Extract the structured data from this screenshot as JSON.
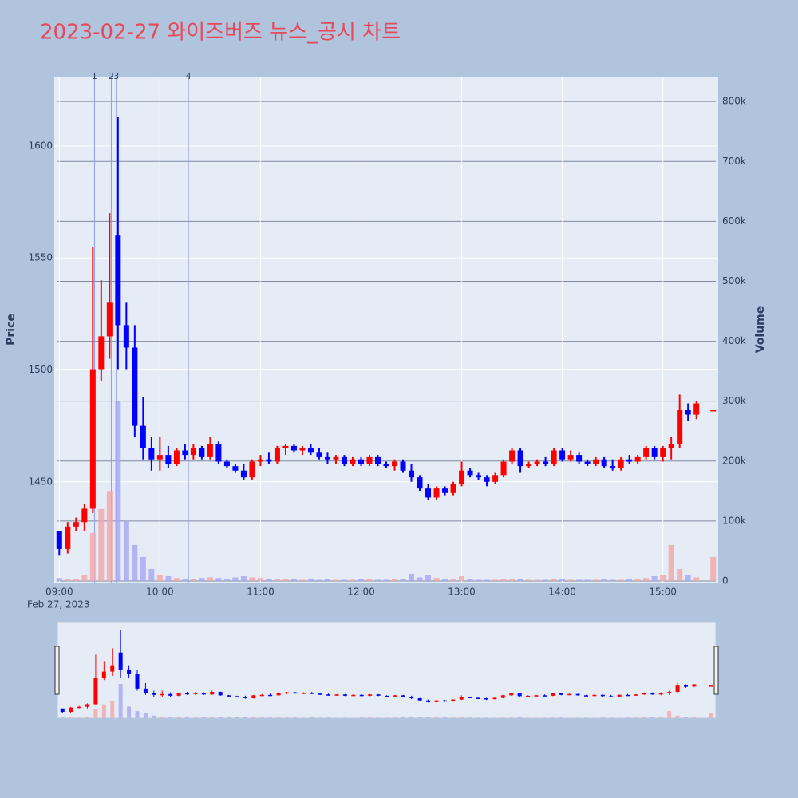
{
  "chart_data": {
    "type": "candlestick",
    "title": "2023-02-27 와이즈버즈 뉴스_공시 차트",
    "y_label": "Price",
    "y2_label": "Volume",
    "x_sublabel": "Feb 27, 2023",
    "increasing_color": "#ff0000",
    "decreasing_color": "#0000ff",
    "volume_increasing_color": "#f4a6a6",
    "volume_decreasing_color": "#a6a6f4",
    "x": [
      "09:00",
      "09:05",
      "09:10",
      "09:15",
      "09:20",
      "09:25",
      "09:30",
      "09:35",
      "09:40",
      "09:45",
      "09:50",
      "09:55",
      "10:00",
      "10:05",
      "10:10",
      "10:15",
      "10:20",
      "10:25",
      "10:30",
      "10:35",
      "10:40",
      "10:45",
      "10:50",
      "10:55",
      "11:00",
      "11:05",
      "11:10",
      "11:15",
      "11:20",
      "11:25",
      "11:30",
      "11:35",
      "11:40",
      "11:45",
      "11:50",
      "11:55",
      "12:00",
      "12:05",
      "12:10",
      "12:15",
      "12:20",
      "12:25",
      "12:30",
      "12:35",
      "12:40",
      "12:45",
      "12:50",
      "12:55",
      "13:00",
      "13:05",
      "13:10",
      "13:15",
      "13:20",
      "13:25",
      "13:30",
      "13:35",
      "13:40",
      "13:45",
      "13:50",
      "13:55",
      "14:00",
      "14:05",
      "14:10",
      "14:15",
      "14:20",
      "14:25",
      "14:30",
      "14:35",
      "14:40",
      "14:45",
      "14:50",
      "14:55",
      "15:00",
      "15:05",
      "15:10",
      "15:15",
      "15:20",
      "15:30"
    ],
    "open": [
      1428,
      1420,
      1430,
      1432,
      1438,
      1500,
      1515,
      1560,
      1520,
      1510,
      1475,
      1465,
      1460,
      1462,
      1458,
      1464,
      1462,
      1465,
      1461,
      1467,
      1459,
      1457,
      1455,
      1452,
      1459,
      1460,
      1459,
      1465,
      1466,
      1464,
      1465,
      1463,
      1461,
      1460,
      1461,
      1458,
      1460,
      1458,
      1461,
      1458,
      1457,
      1459,
      1455,
      1452,
      1447,
      1443,
      1447,
      1445,
      1449,
      1455,
      1453,
      1452,
      1450,
      1453,
      1459,
      1464,
      1457,
      1458,
      1459,
      1458,
      1464,
      1460,
      1462,
      1459,
      1458,
      1460,
      1457,
      1456,
      1460,
      1459,
      1461,
      1465,
      1461,
      1465,
      1467,
      1482,
      1480,
      1482
    ],
    "high": [
      1428,
      1432,
      1434,
      1440,
      1555,
      1540,
      1570,
      1613,
      1530,
      1520,
      1488,
      1470,
      1470,
      1466,
      1465,
      1467,
      1467,
      1466,
      1470,
      1468,
      1460,
      1458,
      1458,
      1460,
      1462,
      1463,
      1466,
      1467,
      1467,
      1466,
      1467,
      1465,
      1463,
      1462,
      1462,
      1461,
      1461,
      1462,
      1462,
      1459,
      1460,
      1460,
      1458,
      1453,
      1449,
      1448,
      1448,
      1450,
      1459,
      1456,
      1454,
      1453,
      1454,
      1460,
      1465,
      1465,
      1459,
      1460,
      1461,
      1465,
      1465,
      1464,
      1463,
      1460,
      1461,
      1461,
      1460,
      1461,
      1462,
      1462,
      1466,
      1466,
      1466,
      1470,
      1489,
      1485,
      1486,
      1482
    ],
    "low": [
      1417,
      1418,
      1428,
      1428,
      1436,
      1495,
      1505,
      1500,
      1500,
      1470,
      1460,
      1455,
      1455,
      1456,
      1457,
      1460,
      1460,
      1460,
      1460,
      1458,
      1456,
      1454,
      1451,
      1451,
      1457,
      1458,
      1458,
      1462,
      1463,
      1462,
      1462,
      1460,
      1458,
      1458,
      1457,
      1457,
      1457,
      1457,
      1457,
      1456,
      1455,
      1454,
      1450,
      1446,
      1442,
      1442,
      1444,
      1444,
      1448,
      1452,
      1451,
      1448,
      1449,
      1452,
      1458,
      1454,
      1456,
      1457,
      1457,
      1457,
      1459,
      1459,
      1458,
      1457,
      1457,
      1456,
      1455,
      1455,
      1458,
      1458,
      1460,
      1460,
      1459,
      1460,
      1465,
      1477,
      1478,
      1482
    ],
    "close": [
      1420,
      1430,
      1432,
      1438,
      1500,
      1515,
      1530,
      1520,
      1510,
      1475,
      1465,
      1460,
      1462,
      1458,
      1464,
      1462,
      1465,
      1461,
      1467,
      1459,
      1457,
      1455,
      1452,
      1459,
      1460,
      1459,
      1465,
      1466,
      1464,
      1465,
      1463,
      1461,
      1460,
      1461,
      1458,
      1460,
      1458,
      1461,
      1458,
      1457,
      1459,
      1455,
      1452,
      1447,
      1443,
      1447,
      1445,
      1449,
      1455,
      1453,
      1452,
      1450,
      1453,
      1459,
      1464,
      1457,
      1458,
      1459,
      1458,
      1464,
      1460,
      1462,
      1459,
      1458,
      1460,
      1457,
      1456,
      1460,
      1459,
      1461,
      1465,
      1461,
      1465,
      1467,
      1482,
      1480,
      1485,
      1482
    ],
    "volume": [
      5000,
      3000,
      3000,
      10000,
      80000,
      120000,
      150000,
      300000,
      100000,
      60000,
      40000,
      20000,
      10000,
      8000,
      5000,
      4000,
      3000,
      5000,
      6000,
      5000,
      4000,
      6000,
      8000,
      6000,
      5000,
      3000,
      4000,
      3000,
      3000,
      2000,
      4000,
      2000,
      3000,
      2000,
      2000,
      2000,
      3000,
      3000,
      2000,
      2000,
      3000,
      4000,
      12000,
      6000,
      10000,
      5000,
      4000,
      3000,
      8000,
      3000,
      2000,
      2000,
      2000,
      3000,
      3000,
      4000,
      2000,
      2000,
      2000,
      3000,
      3000,
      2000,
      2000,
      2000,
      2000,
      3000,
      2000,
      2000,
      3000,
      3000,
      5000,
      8000,
      10000,
      60000,
      20000,
      10000,
      6000,
      40000
    ],
    "xlim": [
      "08:57",
      "15:33"
    ],
    "xticks": [
      "09:00",
      "10:00",
      "11:00",
      "12:00",
      "13:00",
      "14:00",
      "15:00"
    ],
    "ylim": [
      1405,
      1631
    ],
    "yticks": [
      1450,
      1500,
      1550,
      1600
    ],
    "y2lim": [
      -2700,
      841500
    ],
    "y2ticks": [
      0,
      {
        "value": 100000,
        "label": "100k"
      },
      {
        "value": 200000,
        "label": "200k"
      },
      {
        "value": 300000,
        "label": "300k"
      },
      {
        "value": 400000,
        "label": "400k"
      },
      {
        "value": 500000,
        "label": "500k"
      },
      {
        "value": 600000,
        "label": "600k"
      },
      {
        "value": 700000,
        "label": "700k"
      },
      {
        "value": 800000,
        "label": "800k"
      }
    ],
    "annotations": [
      {
        "x": "09:21",
        "label": "1"
      },
      {
        "x": "09:31",
        "label": "2"
      },
      {
        "x": "09:34",
        "label": "3"
      },
      {
        "x": "10:17",
        "label": "4"
      }
    ]
  }
}
